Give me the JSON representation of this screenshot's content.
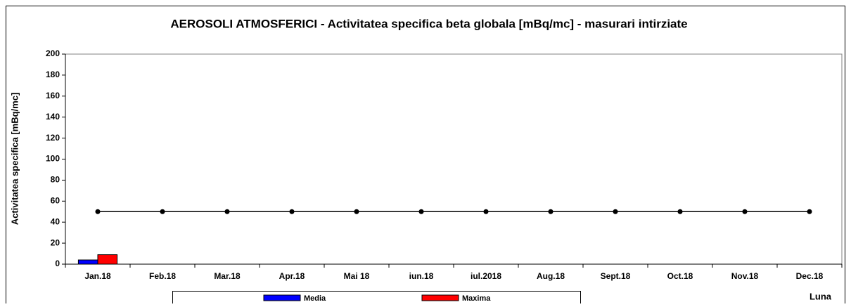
{
  "chart_data": {
    "type": "bar",
    "title": "AEROSOLI  ATMOSFERICI - Activitatea specifica beta globala [mBq/mc] - masurari intirziate",
    "y_label": "Activitatea specifica [mBq/mc]",
    "x_label": "Luna",
    "categories": [
      "Jan.18",
      "Feb.18",
      "Mar.18",
      "Apr.18",
      "Mai 18",
      "iun.18",
      "iul.2018",
      "Aug.18",
      "Sept.18",
      "Oct.18",
      "Nov.18",
      "Dec.18"
    ],
    "series": [
      {
        "name": "Media",
        "color": "#0000ff",
        "values": [
          4,
          null,
          null,
          null,
          null,
          null,
          null,
          null,
          null,
          null,
          null,
          null
        ]
      },
      {
        "name": "Maxima",
        "color": "#ff0000",
        "values": [
          9,
          null,
          null,
          null,
          null,
          null,
          null,
          null,
          null,
          null,
          null,
          null
        ]
      }
    ],
    "line": {
      "color": "#000000",
      "values": [
        50,
        50,
        50,
        50,
        50,
        50,
        50,
        50,
        50,
        50,
        50,
        50
      ]
    },
    "ylim": [
      0,
      200
    ],
    "yticks": [
      0,
      20,
      40,
      60,
      80,
      100,
      120,
      140,
      160,
      180,
      200
    ],
    "grid": false
  }
}
